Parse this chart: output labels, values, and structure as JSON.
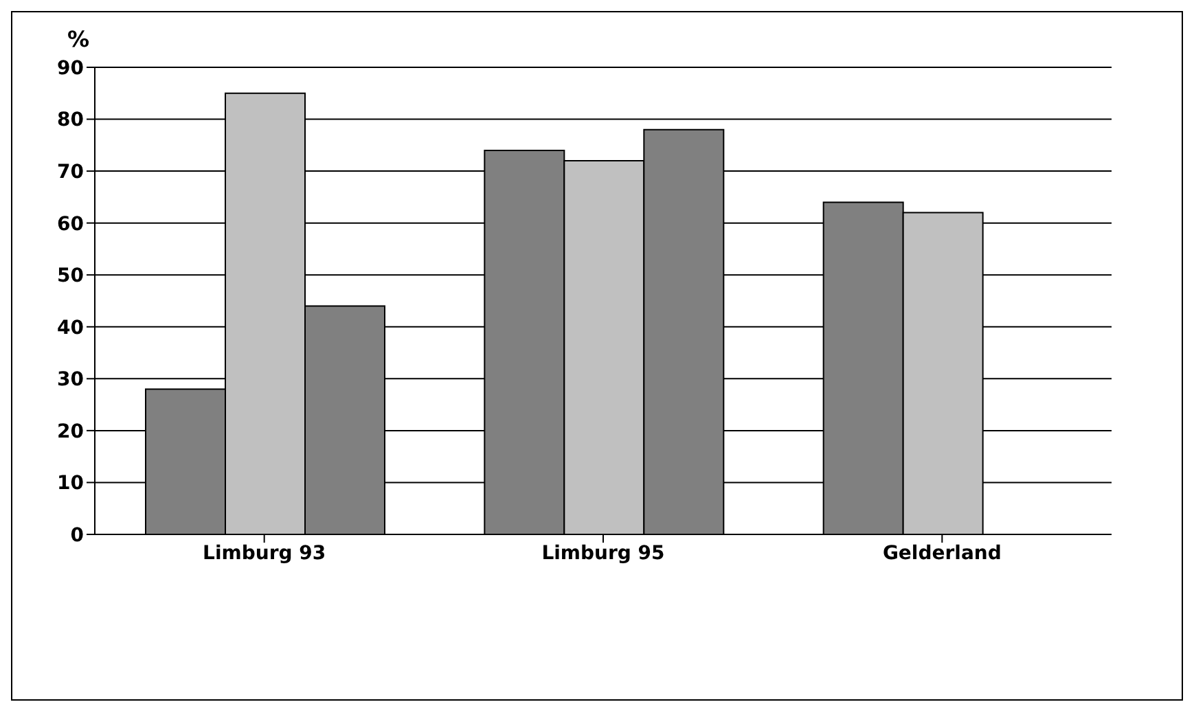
{
  "chart_data": {
    "type": "bar",
    "ylabel": "%",
    "categories": [
      "Limburg 93",
      "Limburg 95",
      "Gelderland"
    ],
    "series": [
      {
        "color": "#808080",
        "values": [
          28,
          74,
          64
        ]
      },
      {
        "color": "#c0c0c0",
        "values": [
          85,
          72,
          62
        ]
      },
      {
        "color": "#808080",
        "values": [
          44,
          78,
          null
        ]
      }
    ],
    "ylim": [
      0,
      90
    ],
    "yticks": [
      0,
      10,
      20,
      30,
      40,
      50,
      60,
      70,
      80,
      90
    ],
    "grid": "y",
    "legend": false
  }
}
